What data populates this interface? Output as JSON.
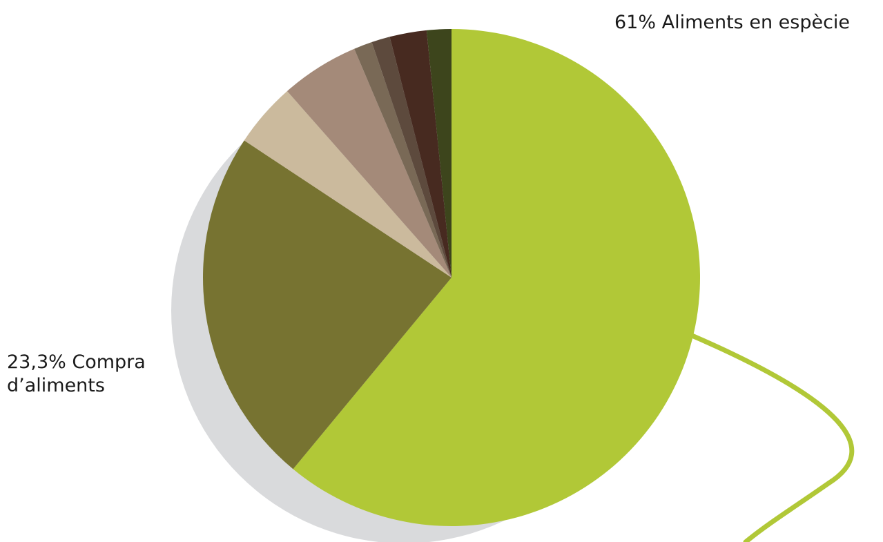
{
  "chart_data": {
    "type": "pie",
    "title": "",
    "slices": [
      {
        "label_lines": [
          "61% Aliments en espècie"
        ],
        "value": 61,
        "color": "#b1c837"
      },
      {
        "label_lines": [
          "23,3% Compra",
          "d’aliments"
        ],
        "value": 23.3,
        "color": "#777331"
      },
      {
        "label_lines": [],
        "value": 4.2,
        "color": "#cbba9d"
      },
      {
        "label_lines": [],
        "value": 5.1,
        "color": "#a48a79"
      },
      {
        "label_lines": [],
        "value": 1.2,
        "color": "#796956"
      },
      {
        "label_lines": [],
        "value": 1.2,
        "color": "#5d4a3d"
      },
      {
        "label_lines": [],
        "value": 2.4,
        "color": "#472a20"
      },
      {
        "label_lines": [],
        "value": 1.6,
        "color": "#3d451c"
      }
    ],
    "shadow_color": "#d9dadc",
    "decorative_curve_color": "#b1c837"
  }
}
